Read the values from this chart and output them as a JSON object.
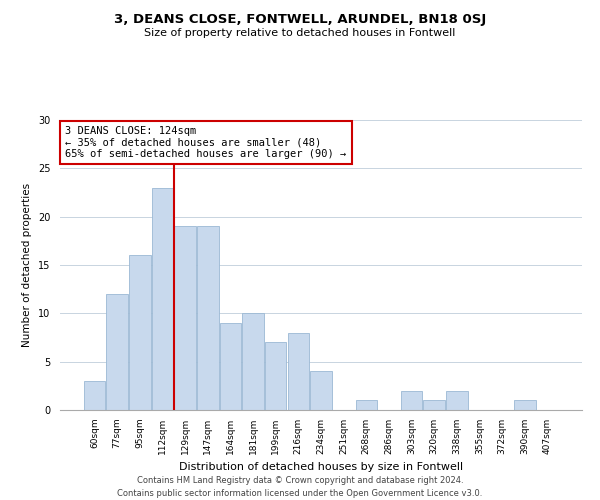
{
  "title": "3, DEANS CLOSE, FONTWELL, ARUNDEL, BN18 0SJ",
  "subtitle": "Size of property relative to detached houses in Fontwell",
  "xlabel": "Distribution of detached houses by size in Fontwell",
  "ylabel": "Number of detached properties",
  "bar_labels": [
    "60sqm",
    "77sqm",
    "95sqm",
    "112sqm",
    "129sqm",
    "147sqm",
    "164sqm",
    "181sqm",
    "199sqm",
    "216sqm",
    "234sqm",
    "251sqm",
    "268sqm",
    "286sqm",
    "303sqm",
    "320sqm",
    "338sqm",
    "355sqm",
    "372sqm",
    "390sqm",
    "407sqm"
  ],
  "bar_values": [
    3,
    12,
    16,
    23,
    19,
    19,
    9,
    10,
    7,
    8,
    4,
    0,
    1,
    0,
    2,
    1,
    2,
    0,
    0,
    1,
    0
  ],
  "bar_color": "#c8d9ed",
  "bar_edge_color": "#9bb8d4",
  "vline_color": "#cc0000",
  "vline_index": 3.5,
  "annotation_text": "3 DEANS CLOSE: 124sqm\n← 35% of detached houses are smaller (48)\n65% of semi-detached houses are larger (90) →",
  "annotation_box_color": "#ffffff",
  "annotation_box_edge": "#cc0000",
  "ylim": [
    0,
    30
  ],
  "yticks": [
    0,
    5,
    10,
    15,
    20,
    25,
    30
  ],
  "footer_line1": "Contains HM Land Registry data © Crown copyright and database right 2024.",
  "footer_line2": "Contains public sector information licensed under the Open Government Licence v3.0.",
  "bg_color": "#ffffff",
  "grid_color": "#c8d4e0",
  "title_fontsize": 9.5,
  "subtitle_fontsize": 8,
  "xlabel_fontsize": 8,
  "ylabel_fontsize": 7.5,
  "tick_fontsize": 6.5,
  "annotation_fontsize": 7.5,
  "footer_fontsize": 6
}
